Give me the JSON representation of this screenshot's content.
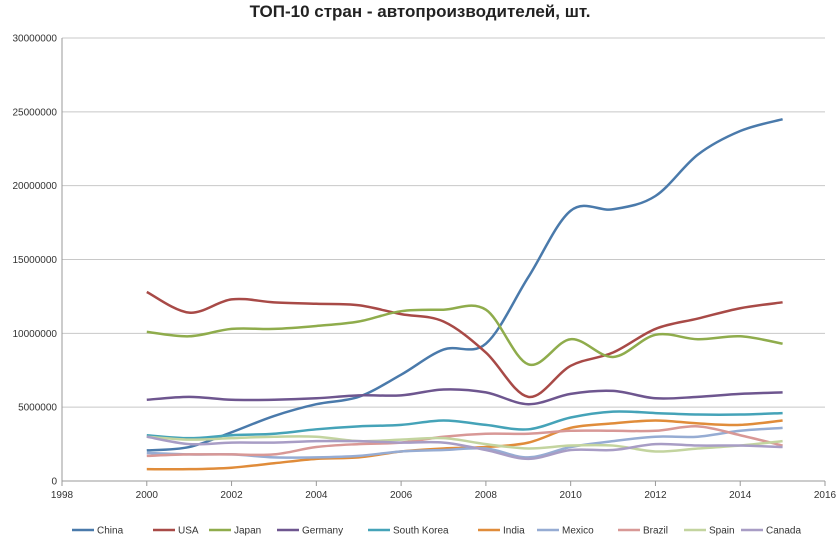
{
  "chart_data": {
    "type": "line",
    "title": "ТОП-10 стран - автопроизводителей, шт.",
    "xlim": [
      1998,
      2016
    ],
    "ylim": [
      0,
      30000000
    ],
    "x_ticks": [
      1998,
      2000,
      2002,
      2004,
      2006,
      2008,
      2010,
      2012,
      2014,
      2016
    ],
    "y_ticks": [
      0,
      5000000,
      10000000,
      15000000,
      20000000,
      25000000,
      30000000
    ],
    "grid": "horizontal",
    "legend": "bottom",
    "smooth": true,
    "x": [
      2000,
      2001,
      2002,
      2003,
      2004,
      2005,
      2006,
      2007,
      2008,
      2009,
      2010,
      2011,
      2012,
      2013,
      2014,
      2015
    ],
    "series": [
      {
        "name": "China",
        "color": "#4a7aab",
        "values": [
          2070000,
          2300000,
          3300000,
          4400000,
          5200000,
          5700000,
          7200000,
          8900000,
          9300000,
          13800000,
          18300000,
          18400000,
          19300000,
          22100000,
          23700000,
          24500000
        ]
      },
      {
        "name": "USA",
        "color": "#a84a47",
        "values": [
          12800000,
          11400000,
          12300000,
          12100000,
          12000000,
          11900000,
          11300000,
          10800000,
          8700000,
          5700000,
          7800000,
          8700000,
          10300000,
          11000000,
          11700000,
          12100000
        ]
      },
      {
        "name": "Japan",
        "color": "#8fac4c",
        "values": [
          10100000,
          9800000,
          10300000,
          10300000,
          10500000,
          10800000,
          11500000,
          11600000,
          11600000,
          7900000,
          9600000,
          8400000,
          9900000,
          9600000,
          9800000,
          9300000
        ]
      },
      {
        "name": "Germany",
        "color": "#6e568f",
        "values": [
          5500000,
          5700000,
          5500000,
          5500000,
          5600000,
          5800000,
          5800000,
          6200000,
          6000000,
          5200000,
          5900000,
          6100000,
          5600000,
          5700000,
          5900000,
          6000000
        ]
      },
      {
        "name": "South Korea",
        "color": "#45a3b8",
        "values": [
          3100000,
          2900000,
          3100000,
          3200000,
          3500000,
          3700000,
          3800000,
          4100000,
          3800000,
          3500000,
          4300000,
          4700000,
          4600000,
          4500000,
          4500000,
          4600000
        ]
      },
      {
        "name": "India",
        "color": "#e08c3a",
        "values": [
          800000,
          800000,
          900000,
          1200000,
          1500000,
          1600000,
          2000000,
          2200000,
          2300000,
          2600000,
          3600000,
          3900000,
          4100000,
          3900000,
          3800000,
          4100000
        ]
      },
      {
        "name": "Mexico",
        "color": "#96acd3",
        "values": [
          1900000,
          1800000,
          1800000,
          1600000,
          1600000,
          1700000,
          2000000,
          2100000,
          2200000,
          1600000,
          2300000,
          2700000,
          3000000,
          3000000,
          3400000,
          3600000
        ]
      },
      {
        "name": "Brazil",
        "color": "#d89896",
        "values": [
          1700000,
          1800000,
          1800000,
          1800000,
          2300000,
          2500000,
          2600000,
          3000000,
          3200000,
          3200000,
          3400000,
          3400000,
          3400000,
          3700000,
          3100000,
          2400000
        ]
      },
      {
        "name": "Spain",
        "color": "#c3d49f",
        "values": [
          3000000,
          2800000,
          2900000,
          3000000,
          3000000,
          2700000,
          2800000,
          2900000,
          2500000,
          2200000,
          2400000,
          2400000,
          2000000,
          2200000,
          2400000,
          2700000
        ]
      },
      {
        "name": "Canada",
        "color": "#a89dc5",
        "values": [
          3000000,
          2500000,
          2600000,
          2600000,
          2700000,
          2700000,
          2600000,
          2600000,
          2100000,
          1500000,
          2100000,
          2100000,
          2500000,
          2400000,
          2400000,
          2300000
        ]
      }
    ]
  }
}
